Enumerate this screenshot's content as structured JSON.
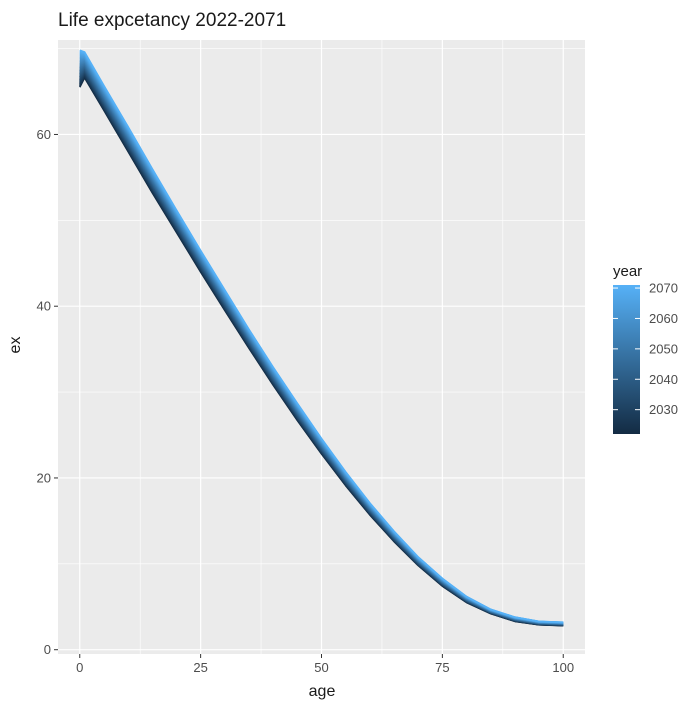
{
  "chart_data": {
    "type": "line",
    "title": "Life expcetancy 2022-2071",
    "xlabel": "age",
    "ylabel": "ex",
    "xlim": [
      -4.5,
      104.5
    ],
    "ylim": [
      -0.5,
      71
    ],
    "x_ticks": [
      0,
      25,
      50,
      75,
      100
    ],
    "y_ticks": [
      0,
      20,
      40,
      60
    ],
    "grid": true,
    "legend": {
      "title": "year",
      "position": "right",
      "type": "colorbar",
      "range": [
        2022,
        2071
      ],
      "ticks": [
        2030,
        2040,
        2050,
        2060,
        2070
      ],
      "color_low": "#132B43",
      "color_high": "#56B1F7"
    },
    "series_range": {
      "first_year": 2022,
      "last_year": 2071
    },
    "ages": [
      0,
      1,
      5,
      10,
      15,
      20,
      25,
      30,
      35,
      40,
      45,
      50,
      55,
      60,
      65,
      70,
      75,
      80,
      85,
      90,
      95,
      100
    ],
    "ex_first_year": [
      65.5,
      66.6,
      62.8,
      58.0,
      53.2,
      48.6,
      44.0,
      39.5,
      35.1,
      30.8,
      26.7,
      22.8,
      19.1,
      15.7,
      12.6,
      9.8,
      7.4,
      5.5,
      4.2,
      3.3,
      2.9,
      2.8
    ],
    "ex_last_year": [
      69.8,
      69.6,
      65.7,
      60.9,
      56.0,
      51.2,
      46.5,
      41.9,
      37.3,
      32.9,
      28.7,
      24.6,
      20.7,
      17.1,
      13.8,
      10.8,
      8.3,
      6.2,
      4.7,
      3.8,
      3.3,
      3.2
    ]
  },
  "colors": {
    "panel_background": "#EBEBEB",
    "grid_major": "#FFFFFF",
    "axis_tick": "#333333"
  }
}
